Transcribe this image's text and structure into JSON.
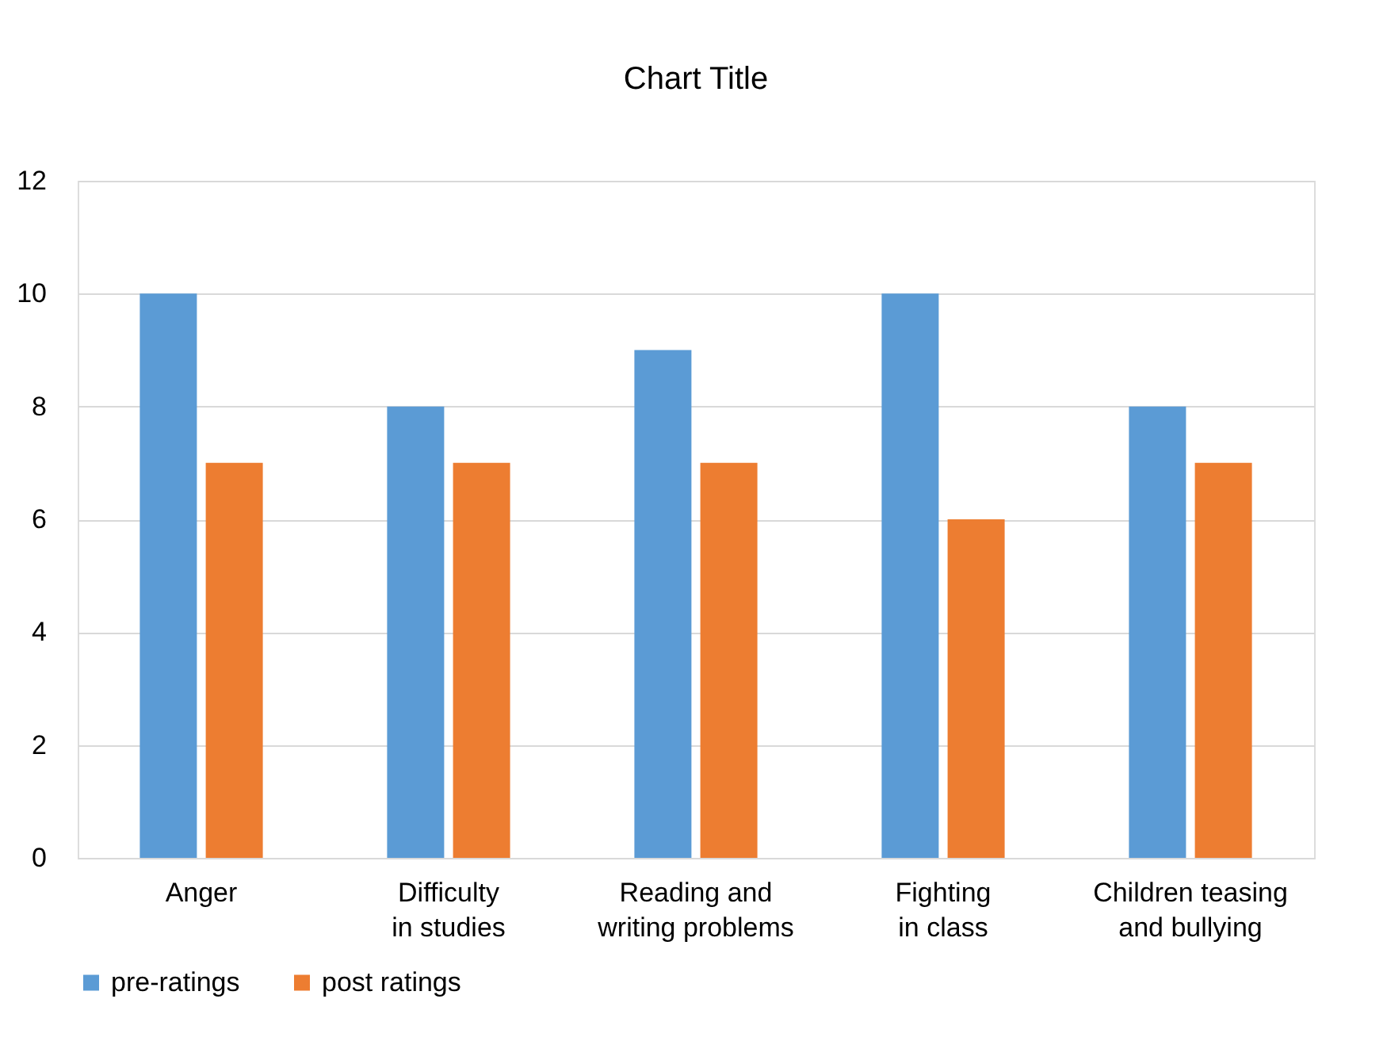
{
  "chart_data": {
    "type": "bar",
    "title": "Chart Title",
    "categories": [
      "Anger",
      "Difficulty\nin studies",
      "Reading and\nwriting problems",
      "Fighting\nin class",
      "Children teasing\nand bullying"
    ],
    "series": [
      {
        "name": "pre-ratings",
        "color": "#5b9bd5",
        "values": [
          10,
          8,
          9,
          10,
          8
        ]
      },
      {
        "name": "post ratings",
        "color": "#ed7d31",
        "values": [
          7,
          7,
          7,
          6,
          7
        ]
      }
    ],
    "ylim": [
      0,
      12
    ],
    "yticks": [
      0,
      2,
      4,
      6,
      8,
      10,
      12
    ],
    "grid": "y",
    "legend": "bottom"
  }
}
